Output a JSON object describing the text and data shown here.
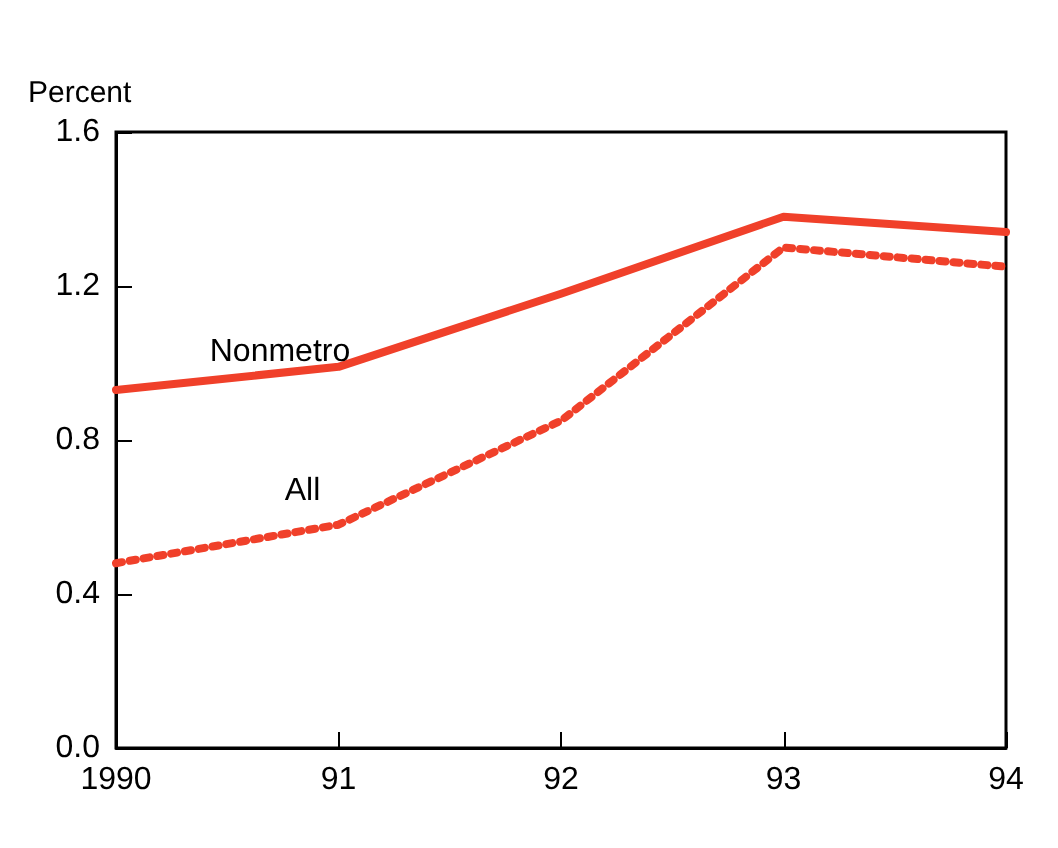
{
  "chart_data": {
    "type": "line",
    "ylabel": "Percent",
    "categories": [
      "1990",
      "91",
      "92",
      "93",
      "94"
    ],
    "series": [
      {
        "name": "Nonmetro",
        "color": "#f0402a",
        "line_style": "solid",
        "values": [
          0.93,
          0.99,
          1.18,
          1.38,
          1.34
        ]
      },
      {
        "name": "All",
        "color": "#f0402a",
        "line_style": "dotted",
        "values": [
          0.48,
          0.58,
          0.85,
          1.3,
          1.25
        ]
      }
    ],
    "ylim": [
      0,
      1.6
    ],
    "yticks": [
      {
        "value": 0,
        "label": "0.0"
      },
      {
        "value": 0.4,
        "label": "0.4"
      },
      {
        "value": 0.8,
        "label": "0.8"
      },
      {
        "value": 1.2,
        "label": "1.2"
      },
      {
        "value": 1.6,
        "label": "1.6"
      }
    ],
    "grid": false,
    "legend": false,
    "marker": "none"
  }
}
